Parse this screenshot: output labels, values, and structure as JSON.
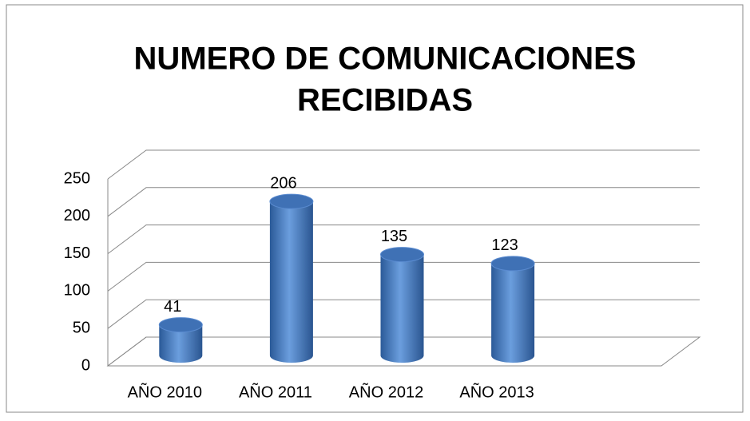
{
  "chart_data": {
    "type": "bar",
    "title": [
      "NUMERO DE COMUNICACIONES",
      "RECIBIDAS"
    ],
    "categories": [
      "AÑO 2010",
      "AÑO 2011",
      "AÑO 2012",
      "AÑO 2013"
    ],
    "values": [
      41,
      206,
      135,
      123
    ],
    "color": "#4a7ebf",
    "ylim": [
      0,
      250
    ],
    "yticks": [
      0,
      50,
      100,
      150,
      200,
      250
    ],
    "grid": true
  }
}
